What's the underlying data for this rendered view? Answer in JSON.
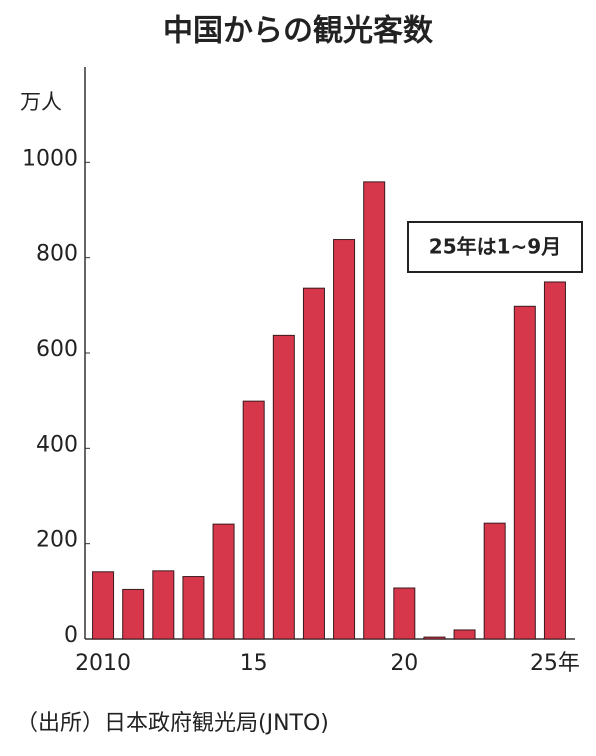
{
  "chart_data": {
    "type": "bar",
    "title": "中国からの観光客数",
    "y_unit": "万人",
    "annotation": "25年は1~9月",
    "source": "（出所）日本政府観光局(JNTO)",
    "categories": [
      "2010",
      null,
      null,
      null,
      null,
      "15",
      null,
      null,
      null,
      null,
      "20",
      null,
      null,
      null,
      null,
      "25年"
    ],
    "values": [
      141,
      104,
      143,
      131,
      241,
      499,
      637,
      736,
      838,
      959,
      107,
      4,
      19,
      243,
      698,
      749
    ],
    "color": "#d7374a",
    "ylim": [
      0,
      1200
    ],
    "yticks": [
      0,
      200,
      400,
      600,
      800,
      1000
    ],
    "grid": false
  }
}
